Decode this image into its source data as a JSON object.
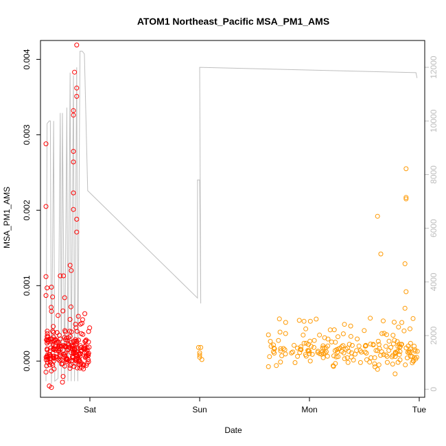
{
  "chart_data": {
    "type": "scatter",
    "title": "ATOM1 Northeast_Pacific MSA_PM1_AMS",
    "xlabel": "Date",
    "ylabel": "MSA_PM1_AMS",
    "x_ticks": [
      "Sat",
      "Sun",
      "Mon",
      "Tue"
    ],
    "y_ticks": [
      "0.000",
      "0.001",
      "0.002",
      "0.003",
      "0.004"
    ],
    "y2_ticks": [
      "0",
      "2000",
      "4000",
      "6000",
      "8000",
      "10000",
      "12000"
    ],
    "xlim_days": [
      -0.45,
      3.05
    ],
    "ylim": [
      -0.00048,
      0.00425
    ],
    "y2lim": [
      -300,
      13000
    ],
    "grid": false,
    "colors": {
      "group1": "#ff0000",
      "group2": "#ff9900",
      "altitude_line": "#bebebe"
    },
    "series": [
      {
        "color": "#ff0000",
        "cluster_x_range_days": [
          -0.4,
          -0.0
        ],
        "outliers": [
          {
            "x": -0.4,
            "y": 0.00288
          },
          {
            "x": -0.4,
            "y": 0.00205
          },
          {
            "x": -0.4,
            "y": 0.00112
          },
          {
            "x": -0.39,
            "y": 0.00097
          },
          {
            "x": -0.4,
            "y": 0.00087
          },
          {
            "x": -0.37,
            "y": -0.00033
          },
          {
            "x": -0.35,
            "y": -0.00035
          },
          {
            "x": -0.35,
            "y": 0.00098
          },
          {
            "x": -0.34,
            "y": 0.00085
          },
          {
            "x": -0.27,
            "y": 0.00113
          },
          {
            "x": -0.24,
            "y": 0.00113
          },
          {
            "x": -0.23,
            "y": 0.00084
          },
          {
            "x": -0.25,
            "y": -0.00028
          },
          {
            "x": -0.18,
            "y": 0.00127
          },
          {
            "x": -0.17,
            "y": 0.0012
          },
          {
            "x": -0.12,
            "y": 0.00419
          },
          {
            "x": -0.14,
            "y": 0.00383
          },
          {
            "x": -0.12,
            "y": 0.00362
          },
          {
            "x": -0.12,
            "y": 0.00351
          },
          {
            "x": -0.15,
            "y": 0.00332
          },
          {
            "x": -0.15,
            "y": 0.00326
          },
          {
            "x": -0.15,
            "y": 0.00278
          },
          {
            "x": -0.15,
            "y": 0.00264
          },
          {
            "x": -0.15,
            "y": 0.00223
          },
          {
            "x": -0.15,
            "y": 0.00201
          },
          {
            "x": -0.12,
            "y": 0.00188
          },
          {
            "x": -0.12,
            "y": 0.00171
          }
        ],
        "cluster_stats": {
          "count": 230,
          "center": 0.00013,
          "spread": 0.00018
        }
      },
      {
        "color": "#ff9900",
        "cluster_x_range_days": [
          1.62,
          3.0
        ],
        "outliers": [
          {
            "x": 0.99,
            "y": 0.00018
          },
          {
            "x": 1.0,
            "y": 0.00011
          },
          {
            "x": 1.0,
            "y": 5e-05
          },
          {
            "x": 1.01,
            "y": 0.00018
          },
          {
            "x": 1.0,
            "y": 8e-05
          },
          {
            "x": 1.02,
            "y": 2e-05
          },
          {
            "x": 2.62,
            "y": 0.00192
          },
          {
            "x": 2.65,
            "y": 0.00142
          },
          {
            "x": 2.62,
            "y": -0.00011
          },
          {
            "x": 2.78,
            "y": -0.00017
          },
          {
            "x": 2.87,
            "y": 0.00129
          },
          {
            "x": 2.88,
            "y": 0.00255
          },
          {
            "x": 2.88,
            "y": 0.00217
          },
          {
            "x": 2.88,
            "y": 0.00215
          },
          {
            "x": 2.88,
            "y": 0.00092
          },
          {
            "x": 2.87,
            "y": 0.0007
          },
          {
            "x": 2.9,
            "y": 0.0002
          }
        ],
        "cluster_stats": {
          "count": 200,
          "center": 0.00012,
          "spread": 0.00013
        }
      }
    ],
    "altitude_line": {
      "color": "#bebebe",
      "points": [
        {
          "x": -0.4,
          "y": 300
        },
        {
          "x": -0.39,
          "y": 9900
        },
        {
          "x": -0.37,
          "y": 10000
        },
        {
          "x": -0.36,
          "y": 10000
        },
        {
          "x": -0.35,
          "y": 200
        },
        {
          "x": -0.33,
          "y": 10000
        },
        {
          "x": -0.32,
          "y": 300
        },
        {
          "x": -0.29,
          "y": 400
        },
        {
          "x": -0.27,
          "y": 10300
        },
        {
          "x": -0.26,
          "y": 400
        },
        {
          "x": -0.25,
          "y": 10300
        },
        {
          "x": -0.23,
          "y": 300
        },
        {
          "x": -0.21,
          "y": 10500
        },
        {
          "x": -0.2,
          "y": 300
        },
        {
          "x": -0.18,
          "y": 11800
        },
        {
          "x": -0.17,
          "y": 300
        },
        {
          "x": -0.15,
          "y": 11700
        },
        {
          "x": -0.14,
          "y": 300
        },
        {
          "x": -0.12,
          "y": 12000
        },
        {
          "x": -0.11,
          "y": 300
        },
        {
          "x": -0.09,
          "y": 12600
        },
        {
          "x": -0.07,
          "y": 12600
        },
        {
          "x": -0.05,
          "y": 12500
        },
        {
          "x": -0.02,
          "y": 7400
        },
        {
          "x": 0.98,
          "y": 3400
        },
        {
          "x": 0.98,
          "y": 7800
        },
        {
          "x": 1.0,
          "y": 7800
        },
        {
          "x": 1.01,
          "y": 3200
        },
        {
          "x": 1.0,
          "y": 12000
        },
        {
          "x": 2.97,
          "y": 11800
        },
        {
          "x": 2.98,
          "y": 11600
        }
      ]
    }
  }
}
